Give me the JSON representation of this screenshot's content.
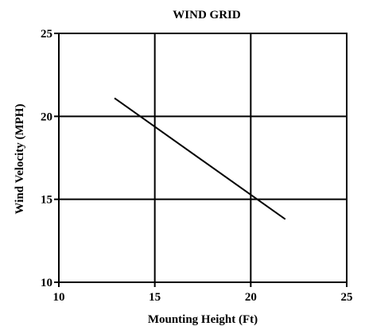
{
  "chart_data": {
    "type": "line",
    "title": "WIND GRID",
    "xlabel": "Mounting Height (Ft)",
    "ylabel": "Wind Velocity (MPH)",
    "xlim": [
      10,
      25
    ],
    "ylim": [
      10,
      25
    ],
    "x_ticks": [
      "10",
      "15",
      "20",
      "25"
    ],
    "y_ticks": [
      "10",
      "15",
      "20",
      "25"
    ],
    "grid": true,
    "series": [
      {
        "x": [
          12.9,
          21.8
        ],
        "y": [
          21.1,
          13.8
        ]
      }
    ],
    "colors": {
      "line": "#000000",
      "grid": "#000000",
      "axis": "#000000"
    }
  }
}
